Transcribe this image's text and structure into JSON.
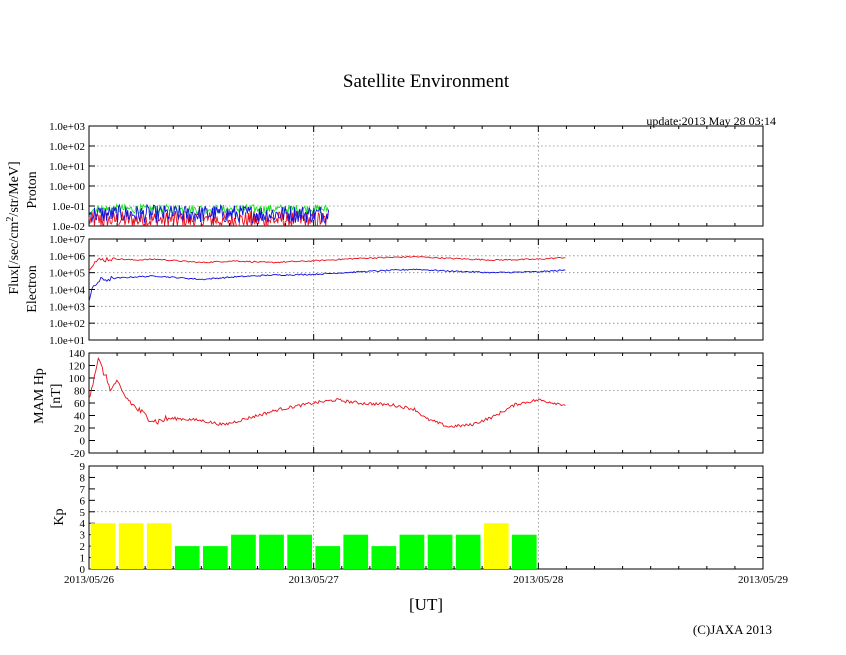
{
  "chart_data": {
    "type": "line",
    "title": "Satellite Environment",
    "update_label": "update:2013 May 28 03:14",
    "shared_ylabel": "Flux[/sec/cm",
    "shared_ylabel_sup": "2",
    "shared_ylabel_tail": "/str/MeV]",
    "xlabel": "[UT]",
    "copyright": "(C)JAXA 2013",
    "x_tick_labels": [
      "2013/05/26",
      "2013/05/27",
      "2013/05/28",
      "2013/05/29"
    ],
    "x_range_days": [
      0,
      3
    ],
    "data_end_day": 1.066,
    "colors": {
      "red": "#e8101a",
      "green": "#18e018",
      "blue": "#1010e0",
      "yellow": "#ffff00",
      "kp_green": "#00ff00",
      "grid": "#888888"
    },
    "panels": {
      "proton": {
        "ylabel": "Proton",
        "scale": "log",
        "ylim_exp": [
          -2,
          3
        ],
        "tick_labels": [
          "1.0e-02",
          "1.0e-01",
          "1.0e+00",
          "1.0e+01",
          "1.0e+02",
          "1.0e+03"
        ],
        "series": [
          {
            "name": "proton-high",
            "color": "red",
            "typical": 0.02
          },
          {
            "name": "proton-mid",
            "color": "green",
            "typical": 0.07
          },
          {
            "name": "proton-low",
            "color": "blue",
            "typical": 0.04
          }
        ]
      },
      "electron": {
        "ylabel": "Electron",
        "scale": "log",
        "ylim_exp": [
          1,
          7
        ],
        "tick_labels": [
          "1.0e+01",
          "1.0e+02",
          "1.0e+03",
          "1.0e+04",
          "1.0e+05",
          "1.0e+06",
          "1.0e+07"
        ],
        "series": [
          {
            "name": "electron-low-energy",
            "color": "red",
            "x": [
              0.0,
              0.02,
              0.05,
              0.1,
              0.2,
              0.3,
              0.5,
              0.65,
              0.8,
              1.0,
              1.2,
              1.45,
              1.6,
              1.8,
              2.0,
              2.12
            ],
            "log_y": [
              5.3,
              5.6,
              5.75,
              5.85,
              5.75,
              5.8,
              5.6,
              5.7,
              5.6,
              5.7,
              5.85,
              5.95,
              5.85,
              5.75,
              5.8,
              5.9
            ]
          },
          {
            "name": "electron-high-energy",
            "color": "blue",
            "x": [
              0.0,
              0.02,
              0.05,
              0.1,
              0.2,
              0.3,
              0.5,
              0.65,
              0.8,
              1.0,
              1.2,
              1.45,
              1.6,
              1.8,
              2.0,
              2.12
            ],
            "log_y": [
              3.3,
              4.2,
              4.55,
              4.65,
              4.75,
              4.8,
              4.6,
              4.75,
              4.85,
              4.9,
              5.05,
              5.2,
              5.1,
              5.0,
              5.05,
              5.15
            ]
          }
        ]
      },
      "hp": {
        "ylabel": "MAM Hp",
        "ylabel2": "[nT]",
        "scale": "linear",
        "ylim": [
          -20,
          140
        ],
        "tick_labels": [
          "-20",
          "0",
          "20",
          "40",
          "60",
          "80",
          "100",
          "120",
          "140"
        ],
        "series": [
          {
            "name": "mam-hp",
            "color": "red",
            "x": [
              0.0,
              0.015,
              0.04,
              0.07,
              0.1,
              0.12,
              0.15,
              0.2,
              0.25,
              0.3,
              0.35,
              0.4,
              0.5,
              0.6,
              0.65,
              0.75,
              0.85,
              1.0,
              1.1,
              1.2,
              1.35,
              1.45,
              1.5,
              1.6,
              1.7,
              1.8,
              1.9,
              2.0,
              2.12
            ],
            "y": [
              70,
              90,
              130,
              105,
              80,
              95,
              75,
              55,
              40,
              30,
              35,
              35,
              32,
              25,
              30,
              40,
              50,
              60,
              65,
              60,
              57,
              50,
              35,
              22,
              25,
              38,
              58,
              65,
              57
            ]
          }
        ]
      },
      "kp": {
        "ylabel": "Kp",
        "scale": "linear",
        "ylim": [
          0,
          9
        ],
        "tick_labels": [
          "0",
          "1",
          "2",
          "3",
          "4",
          "5",
          "6",
          "7",
          "8",
          "9"
        ],
        "bars": [
          {
            "day_start": 0.0,
            "value": 4,
            "color": "yellow"
          },
          {
            "day_start": 0.125,
            "value": 4,
            "color": "yellow"
          },
          {
            "day_start": 0.25,
            "value": 4,
            "color": "yellow"
          },
          {
            "day_start": 0.375,
            "value": 2,
            "color": "kp_green"
          },
          {
            "day_start": 0.5,
            "value": 2,
            "color": "kp_green"
          },
          {
            "day_start": 0.625,
            "value": 3,
            "color": "kp_green"
          },
          {
            "day_start": 0.75,
            "value": 3,
            "color": "kp_green"
          },
          {
            "day_start": 0.875,
            "value": 3,
            "color": "kp_green"
          },
          {
            "day_start": 1.0,
            "value": 2,
            "color": "kp_green"
          },
          {
            "day_start": 1.125,
            "value": 3,
            "color": "kp_green"
          },
          {
            "day_start": 1.25,
            "value": 2,
            "color": "kp_green"
          },
          {
            "day_start": 1.375,
            "value": 3,
            "color": "kp_green"
          },
          {
            "day_start": 1.5,
            "value": 3,
            "color": "kp_green"
          },
          {
            "day_start": 1.625,
            "value": 3,
            "color": "kp_green"
          },
          {
            "day_start": 1.75,
            "value": 4,
            "color": "yellow"
          },
          {
            "day_start": 1.875,
            "value": 3,
            "color": "kp_green"
          }
        ],
        "bar_width_days": 0.11,
        "threshold_line": 5
      }
    }
  }
}
